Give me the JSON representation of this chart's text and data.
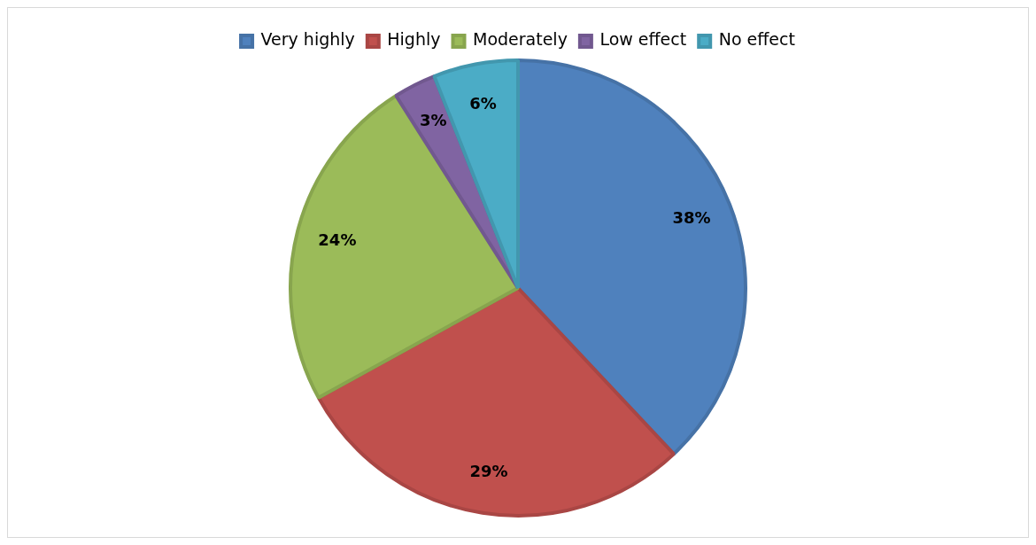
{
  "chart_data": {
    "type": "pie",
    "categories": [
      "Very highly",
      "Highly",
      "Moderately",
      "Low effect",
      "No effect"
    ],
    "values": [
      38,
      29,
      24,
      3,
      6
    ],
    "colors": [
      "#4f81bd",
      "#c0504d",
      "#9bbb59",
      "#8064a2",
      "#4bacc6"
    ],
    "value_labels": [
      "38%",
      "29%",
      "24%",
      "3%",
      "6%"
    ],
    "legend": "top"
  }
}
